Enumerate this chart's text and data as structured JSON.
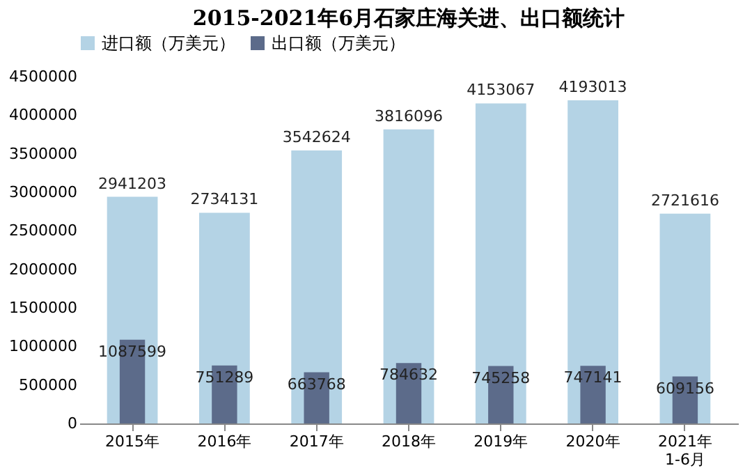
{
  "chart_data": {
    "type": "bar",
    "title": "2015-2021年6月石家庄海关进、出口额统计",
    "categories": [
      "2015年",
      "2016年",
      "2017年",
      "2018年",
      "2019年",
      "2020年",
      "2021年 1-6月"
    ],
    "series": [
      {
        "name": "进口额（万美元）",
        "color": "#b4d3e5",
        "values": [
          2941203,
          2734131,
          3542624,
          3816096,
          4153067,
          4193013,
          2721616
        ]
      },
      {
        "name": "出口额（万美元）",
        "color": "#5c6b8a",
        "values": [
          1087599,
          751289,
          663768,
          784632,
          745258,
          747141,
          609156
        ]
      }
    ],
    "ylim": [
      0,
      4500000
    ],
    "yticks": [
      0,
      500000,
      1000000,
      1500000,
      2000000,
      2500000,
      3000000,
      3500000,
      4000000,
      4500000
    ],
    "grid": false,
    "legend": "top",
    "data_labels": true
  }
}
